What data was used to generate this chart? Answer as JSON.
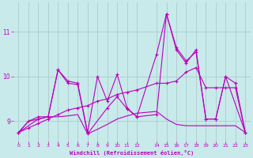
{
  "bg_color": "#c8eaea",
  "grid_color": "#b0d0d0",
  "line_color": "#bb00bb",
  "xlabel": "Windchill (Refroidissement éolien,°C)",
  "xlim": [
    -0.5,
    23.5
  ],
  "ylim": [
    8.55,
    11.65
  ],
  "yticks": [
    9,
    10,
    11
  ],
  "xticks": [
    0,
    1,
    2,
    3,
    4,
    5,
    6,
    7,
    8,
    9,
    10,
    11,
    12,
    14,
    15,
    16,
    17,
    18,
    19,
    20,
    21,
    22,
    23
  ],
  "line1_x": [
    0,
    1,
    2,
    3,
    4,
    5,
    6,
    7,
    8,
    9,
    10,
    11,
    12,
    14,
    15,
    16,
    17,
    18,
    19,
    20,
    21,
    22,
    23
  ],
  "line1_y": [
    8.75,
    9.0,
    9.1,
    9.1,
    10.15,
    9.9,
    9.85,
    8.75,
    10.0,
    9.45,
    10.05,
    9.3,
    9.1,
    9.15,
    11.4,
    10.65,
    10.35,
    10.55,
    9.05,
    9.05,
    10.0,
    9.85,
    8.75
  ],
  "line2_x": [
    0,
    1,
    2,
    3,
    4,
    5,
    6,
    7,
    8,
    9,
    10,
    11,
    12,
    14,
    15,
    16,
    17,
    18,
    19,
    20,
    21,
    22,
    23
  ],
  "line2_y": [
    8.75,
    9.0,
    9.05,
    9.1,
    9.1,
    9.12,
    9.15,
    8.72,
    8.82,
    8.93,
    9.05,
    9.12,
    9.18,
    9.22,
    9.05,
    8.93,
    8.9,
    8.9,
    8.9,
    8.9,
    8.9,
    8.9,
    8.75
  ],
  "line3_x": [
    0,
    2,
    3,
    4,
    5,
    6,
    7,
    9,
    10,
    11,
    12,
    14,
    15,
    16,
    17,
    18,
    19,
    20,
    21,
    23
  ],
  "line3_y": [
    8.75,
    9.05,
    9.1,
    10.15,
    9.85,
    9.82,
    8.72,
    9.3,
    9.55,
    9.28,
    9.1,
    10.5,
    11.4,
    10.6,
    10.3,
    10.6,
    9.05,
    9.05,
    10.0,
    8.75
  ],
  "line4_x": [
    0,
    1,
    2,
    3,
    4,
    5,
    6,
    7,
    8,
    9,
    10,
    11,
    12,
    14,
    15,
    16,
    17,
    18,
    19,
    20,
    21,
    22,
    23
  ],
  "line4_y": [
    8.75,
    8.85,
    8.95,
    9.05,
    9.15,
    9.25,
    9.3,
    9.35,
    9.45,
    9.5,
    9.6,
    9.65,
    9.7,
    9.85,
    9.85,
    9.9,
    10.1,
    10.2,
    9.75,
    9.75,
    9.75,
    9.75,
    8.75
  ]
}
